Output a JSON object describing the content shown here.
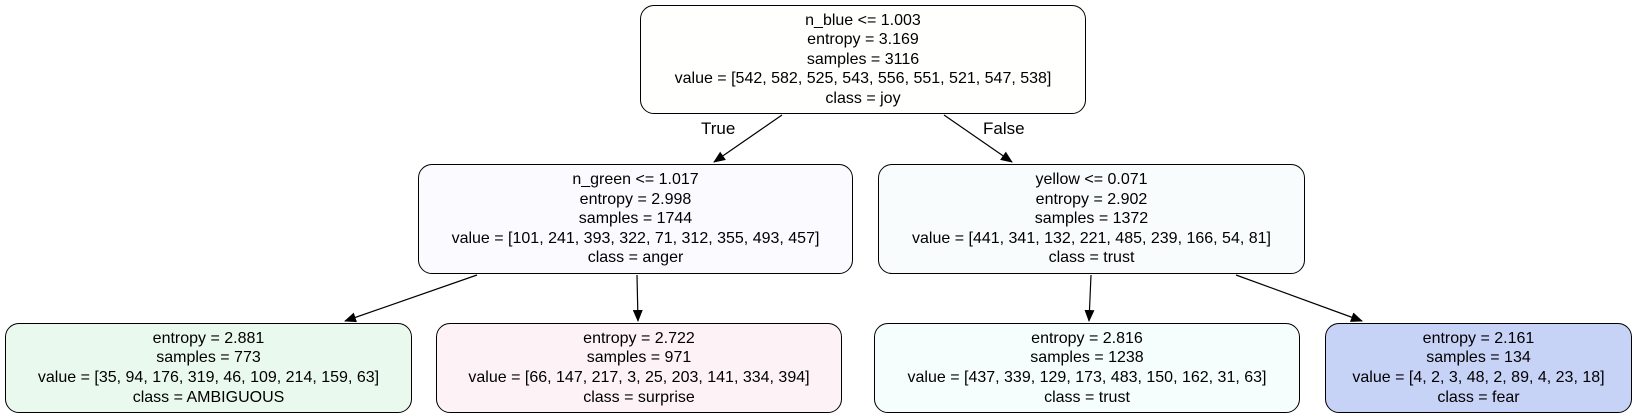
{
  "nodes": [
    {
      "id": "n0",
      "lines": [
        "n_blue <= 1.003",
        "entropy = 3.169",
        "samples = 3116",
        "value = [542, 582, 525, 543, 556, 551, 521, 547, 538]",
        "class = joy"
      ],
      "fill": "#fffffd"
    },
    {
      "id": "n1",
      "lines": [
        "n_green <= 1.017",
        "entropy = 2.998",
        "samples = 1744",
        "value = [101, 241, 393, 322, 71, 312, 355, 493, 457]",
        "class = anger"
      ],
      "fill": "#fbfaff"
    },
    {
      "id": "n2",
      "lines": [
        "yellow <= 0.071",
        "entropy = 2.902",
        "samples = 1372",
        "value = [441, 341, 132, 221, 485, 239, 166, 54, 81]",
        "class = trust"
      ],
      "fill": "#f8fcfd"
    },
    {
      "id": "n3",
      "lines": [
        "entropy = 2.881",
        "samples = 773",
        "value = [35, 94, 176, 319, 46, 109, 214, 159, 63]",
        "class = AMBIGUOUS"
      ],
      "fill": "#eaf9ee"
    },
    {
      "id": "n4",
      "lines": [
        "entropy = 2.722",
        "samples = 971",
        "value = [66, 147, 217, 3, 25, 203, 141, 334, 394]",
        "class = surprise"
      ],
      "fill": "#fdf2f6"
    },
    {
      "id": "n5",
      "lines": [
        "entropy = 2.816",
        "samples = 1238",
        "value = [437, 339, 129, 173, 483, 150, 162, 31, 63]",
        "class = trust"
      ],
      "fill": "#f6fdfd"
    },
    {
      "id": "n6",
      "lines": [
        "entropy = 2.161",
        "samples = 134",
        "value = [4, 2, 3, 48, 2, 89, 4, 23, 18]",
        "class = fear"
      ],
      "fill": "#c7d2f7"
    }
  ],
  "edges": [
    {
      "from": "n0",
      "to": "n1",
      "label": "True"
    },
    {
      "from": "n0",
      "to": "n2",
      "label": "False"
    },
    {
      "from": "n1",
      "to": "n3",
      "label": ""
    },
    {
      "from": "n1",
      "to": "n4",
      "label": ""
    },
    {
      "from": "n2",
      "to": "n5",
      "label": ""
    },
    {
      "from": "n2",
      "to": "n6",
      "label": ""
    }
  ],
  "edge_labels": {
    "true": "True",
    "false": "False"
  },
  "colors": {
    "line": "#000000",
    "background": "#ffffff"
  }
}
